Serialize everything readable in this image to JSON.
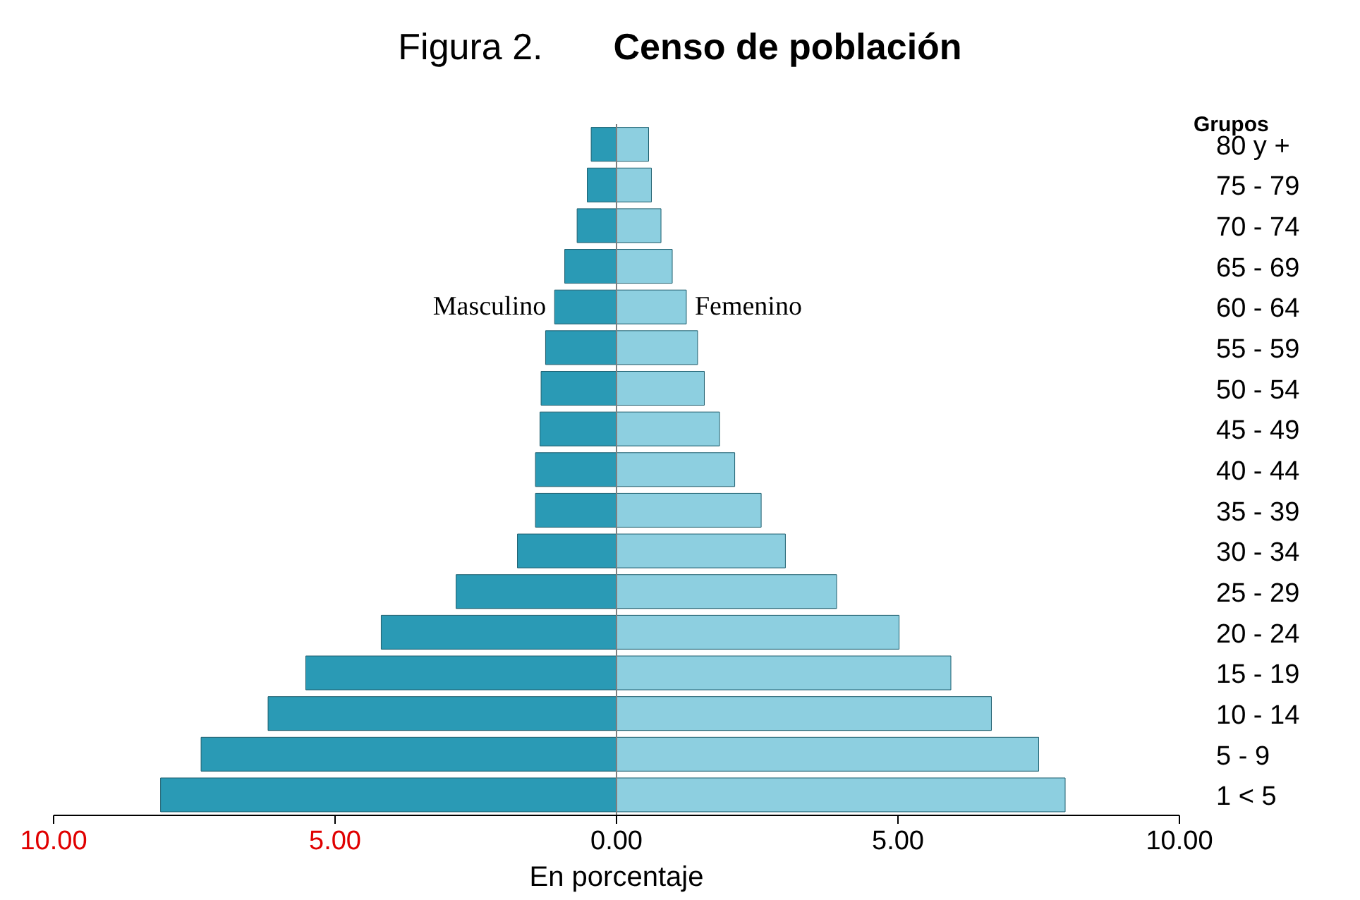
{
  "chart_data": {
    "type": "bar",
    "orientation": "horizontal",
    "stacked": true,
    "title": "Censo de población",
    "annotations": [
      "Figura 2."
    ],
    "xlabel": "En porcentaje",
    "ylabel": "Grupos",
    "legend": false,
    "grid": false,
    "categories": [
      "80 y +",
      "75 - 79",
      "70 - 74",
      "65 - 69",
      "60 - 64",
      "55 - 59",
      "50 - 54",
      "45 - 49",
      "40 - 44",
      "35 - 39",
      "30 - 34",
      "25 - 29",
      "20 - 24",
      "15 - 19",
      "10 - 14",
      "5 - 9",
      "1 <  5"
    ],
    "series": [
      {
        "name": "Masculino",
        "color": "#2a9ab5",
        "values": [
          -0.45,
          -0.52,
          -0.7,
          -0.92,
          -1.1,
          -1.26,
          -1.34,
          -1.36,
          -1.44,
          -1.44,
          -1.76,
          -2.85,
          -4.18,
          -5.52,
          -6.19,
          -7.38,
          -8.1
        ]
      },
      {
        "name": "Femenino",
        "color": "#8dcfe0",
        "values": [
          0.57,
          0.62,
          0.79,
          0.99,
          1.24,
          1.44,
          1.56,
          1.83,
          2.1,
          2.57,
          3.0,
          3.91,
          5.02,
          5.94,
          6.66,
          7.5,
          7.97
        ]
      }
    ],
    "ref_lines": [
      {
        "axis": "x",
        "value": 0,
        "color": "#7f7f7f"
      }
    ],
    "xlim": [
      -10,
      10
    ],
    "xticks": [
      {
        "value": -10,
        "label": "10.00"
      },
      {
        "value": -5,
        "label": "5.00"
      },
      {
        "value": 0,
        "label": "0.00"
      },
      {
        "value": 5,
        "label": "5.00"
      },
      {
        "value": 10,
        "label": "10.00"
      }
    ]
  }
}
